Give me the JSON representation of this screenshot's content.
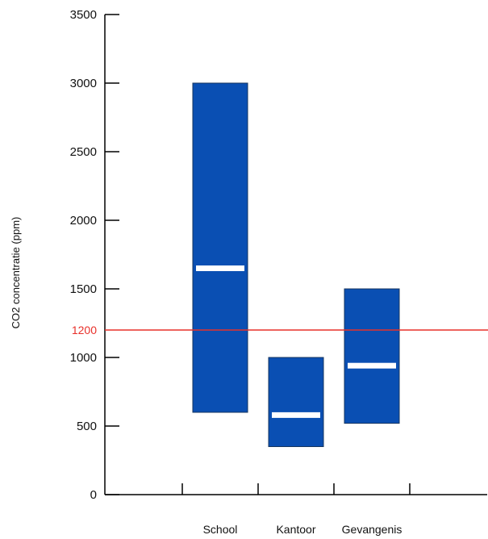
{
  "chart_data": {
    "type": "bar",
    "title": "",
    "xlabel": "",
    "ylabel": "CO2 concentratie (ppm)",
    "ylim": [
      0,
      3500
    ],
    "yticks": [
      0,
      500,
      1000,
      1500,
      2000,
      2500,
      3000,
      3500
    ],
    "categories": [
      "School",
      "Kantoor",
      "Gevangenis"
    ],
    "ranges": [
      {
        "category": "School",
        "min": 600,
        "max": 3000,
        "mean": 1650
      },
      {
        "category": "Kantoor",
        "min": 350,
        "max": 1000,
        "mean": 580
      },
      {
        "category": "Gevangenis",
        "min": 520,
        "max": 1500,
        "mean": 940
      }
    ],
    "reference_line": {
      "value": 1200,
      "label": "1200",
      "color": "#e8302a"
    },
    "bar_color": "#0a4fb3",
    "mean_marker_color": "#ffffff",
    "grid": false,
    "legend": "none"
  }
}
